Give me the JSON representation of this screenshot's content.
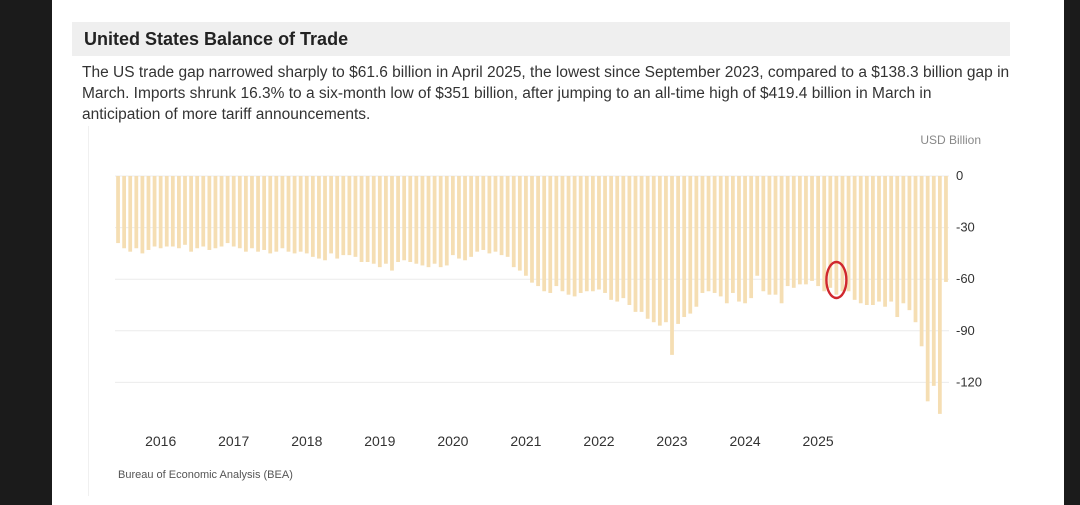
{
  "header": {
    "title": "United States Balance of Trade"
  },
  "summary": "The US trade gap narrowed sharply to $61.6 billion in April 2025, the lowest since September 2023, compared to a $138.3 billion gap in March. Imports shrunk 16.3% to a six-month low of $351 billion, after jumping to an all-time high of $419.4 billion in March in anticipation of more tariff announcements.",
  "source": "Bureau of Economic Analysis (BEA)",
  "chart_data": {
    "type": "bar",
    "unit_label": "USD Billion",
    "ylim": [
      -146,
      0
    ],
    "yticks": [
      0,
      -30,
      -60,
      -90,
      -120
    ],
    "ytick_labels": [
      "0",
      "-30",
      "-60",
      "-90",
      "-120"
    ],
    "xticks": [
      "2016",
      "2017",
      "2018",
      "2019",
      "2020",
      "2021",
      "2022",
      "2023",
      "2024",
      "2025"
    ],
    "x_start": "2015-06",
    "grid": true,
    "bar_color": "#f5deb3",
    "highlight": {
      "month": "2025-04",
      "value": -61.6,
      "color": "#d0282e"
    },
    "values": [
      -39,
      -42,
      -44,
      -42,
      -45,
      -43,
      -41,
      -42,
      -41,
      -41,
      -42,
      -40,
      -44,
      -42,
      -41,
      -43,
      -42,
      -41,
      -39,
      -41,
      -42,
      -44,
      -42,
      -44,
      -43,
      -45,
      -44,
      -42,
      -44,
      -45,
      -44,
      -45,
      -47,
      -48,
      -49,
      -45,
      -48,
      -46,
      -46,
      -47,
      -50,
      -50,
      -51,
      -53,
      -51,
      -55,
      -50,
      -49,
      -50,
      -51,
      -52,
      -53,
      -51,
      -53,
      -52,
      -46,
      -48,
      -49,
      -47,
      -44,
      -43,
      -45,
      -44,
      -46,
      -47,
      -53,
      -55,
      -58,
      -62,
      -64,
      -67,
      -68,
      -64,
      -67,
      -69,
      -70,
      -68,
      -67,
      -67,
      -66,
      -68,
      -72,
      -73,
      -71,
      -75,
      -79,
      -79,
      -83,
      -85,
      -87,
      -85,
      -104,
      -86,
      -82,
      -80,
      -76,
      -68,
      -67,
      -68,
      -70,
      -74,
      -68,
      -73,
      -74,
      -71,
      -58,
      -67,
      -69,
      -69,
      -74,
      -64,
      -65,
      -63,
      -63,
      -61,
      -64,
      -67,
      -65,
      -69,
      -67,
      -67,
      -72,
      -74,
      -75,
      -75,
      -73,
      -76,
      -73,
      -82,
      -74,
      -78,
      -85,
      -99,
      -131,
      -122,
      -138.3,
      -61.6
    ]
  }
}
